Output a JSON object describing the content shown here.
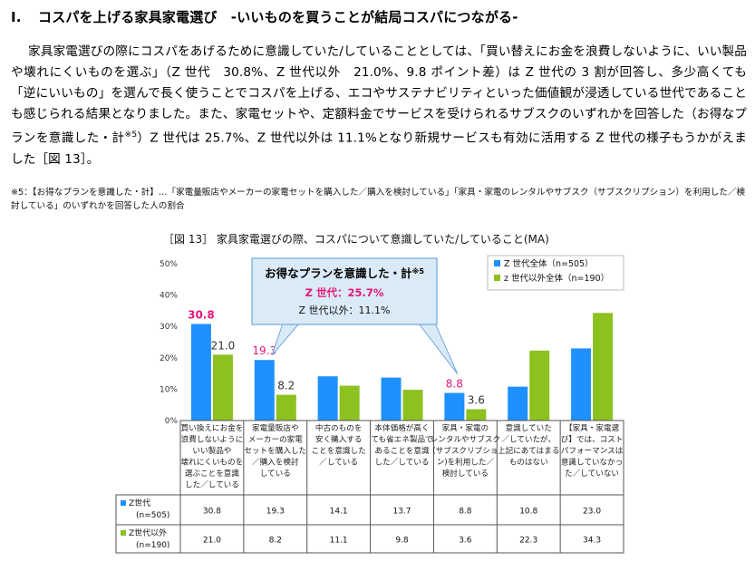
{
  "heading": {
    "number": "I.",
    "text": "コスパを上げる家具家電選び　-いいものを買うことが結局コスパにつながる-"
  },
  "paragraph": {
    "part1": "家具家電選びの際にコスパをあげるために意識していた/していることとしては、「買い替えにお金を浪費しないように、いい製品や壊れにくいものを選ぶ」（Z 世代　30.8%、Z 世代以外　21.0%、9.8 ポイント差）は Z 世代の 3 割が回答し、多少高くても「逆にいいもの」を選んで長く使うことでコスパを上げる、エコやサステナビリティといった価値観が浸透している世代であることも感じられる結果となりました。また、家電セットや、定額料金でサービスを受けられるサブスクのいずれかを回答した（お得なプランを意識した・計",
    "sup": "※5",
    "part2": "）Z 世代は 25.7%、Z 世代以外は 11.1%となり新規サービスも有効に活用する Z 世代の様子もうかがえました［図 13］。"
  },
  "footnote": "※5：【お得なプランを意識した・計】…「家電量販店やメーカーの家電セットを購入した／購入を検討している」「家具・家電のレンタルやサブスク（サブスクリプション）を利用した／検討している」のいずれかを回答した人の割合",
  "chart_data": {
    "type": "bar",
    "title": "［図 13］ 家具家電選びの際、コスパについて意識していた/していること(MA)",
    "ylim": [
      0,
      50
    ],
    "yticks": [
      "0%",
      "10%",
      "20%",
      "30%",
      "40%",
      "50%"
    ],
    "categories": [
      [
        "買い換えにお金を",
        "浪費しないように",
        "いい製品や",
        "壊れにくいものを",
        "選ぶことを意識",
        "した／している"
      ],
      [
        "家電量販店や",
        "メーカーの家電",
        "セットを購入した",
        "／購入を検討",
        "している"
      ],
      [
        "中古のものを",
        "安く購入する",
        "ことを意識した",
        "／している"
      ],
      [
        "本体価格が高く",
        "ても省エネ製品で",
        "あることを意識",
        "した／している"
      ],
      [
        "家具・家電の",
        "レンタルやサブスク",
        "(サブスクリプショ",
        "ン)を利用した／",
        "検討している"
      ],
      [
        "意識していた",
        "／していたが、",
        "上記にあてはまる",
        "ものはない"
      ],
      [
        "【家具・家電選",
        "び】では、コスト",
        "パフォーマンスは",
        "意識していなかっ",
        "た／していない"
      ]
    ],
    "series": [
      {
        "name": "Z 世代全体（n=505）",
        "table_name": [
          "Z世代",
          "(n=505)"
        ],
        "color": "#1e90ff",
        "values": [
          30.8,
          19.3,
          14.1,
          13.7,
          8.8,
          10.8,
          23.0
        ],
        "table_values": [
          "30.8",
          "19.3",
          "14.1",
          "13.7",
          "8.8",
          "10.8",
          "23.0"
        ],
        "labels": [
          {
            "index": 0,
            "text": "30.8",
            "color": "#e6177a",
            "bold": true
          },
          {
            "index": 1,
            "text": "19.3",
            "color": "#e6177a",
            "bold": false
          },
          {
            "index": 4,
            "text": "8.8",
            "color": "#e6177a",
            "bold": false
          }
        ]
      },
      {
        "name": "z 世代以外全体（n=190）",
        "table_name": [
          "Z世代以外",
          "(n=190)"
        ],
        "color": "#8cc11f",
        "values": [
          21.0,
          8.2,
          11.1,
          9.8,
          3.6,
          22.3,
          34.3
        ],
        "table_values": [
          "21.0",
          "8.2",
          "11.1",
          "9.8",
          "3.6",
          "22.3",
          "34.3"
        ],
        "labels": [
          {
            "index": 0,
            "text": "21.0",
            "color": "#333333",
            "bold": false
          },
          {
            "index": 1,
            "text": "8.2",
            "color": "#333333",
            "bold": false
          },
          {
            "index": 4,
            "text": "3.6",
            "color": "#333333",
            "bold": false
          }
        ]
      }
    ],
    "legend_position": "top-right",
    "callout": {
      "title": "お得なプランを意識した・計",
      "title_sup": "※5",
      "z_line": "Z 世代：25.7%",
      "other_line": "Z 世代以外：11.1%"
    }
  }
}
